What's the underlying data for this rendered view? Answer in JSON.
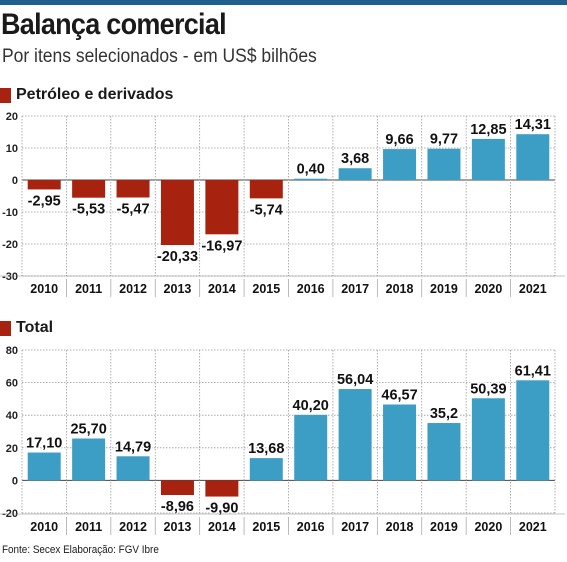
{
  "header": {
    "title": "Balança comercial",
    "subtitle": "Por itens selecionados - em US$ bilhões"
  },
  "colors": {
    "negative_bar": "#a8230f",
    "positive_bar": "#3d9ec5",
    "top_rule": "#1f5f8b"
  },
  "chart_data": [
    {
      "type": "bar",
      "legend": "Petróleo e derivados",
      "categories": [
        "2010",
        "2011",
        "2012",
        "2013",
        "2014",
        "2015",
        "2016",
        "2017",
        "2018",
        "2019",
        "2020",
        "2021"
      ],
      "values": [
        -2.95,
        -5.53,
        -5.47,
        -20.33,
        -16.97,
        -5.74,
        0.4,
        3.68,
        9.66,
        9.77,
        12.85,
        14.31
      ],
      "value_labels": [
        "-2,95",
        "-5,53",
        "-5,47",
        "-20,33",
        "-16,97",
        "-5,74",
        "0,40",
        "3,68",
        "9,66",
        "9,77",
        "12,85",
        "14,31"
      ],
      "yticks": [
        20,
        10,
        0,
        -10,
        -20,
        -30
      ],
      "ytick_labels": [
        "20",
        "10",
        "0",
        "-10",
        "-20",
        "-30"
      ],
      "ylim": [
        -30,
        20
      ]
    },
    {
      "type": "bar",
      "legend": "Total",
      "categories": [
        "2010",
        "2011",
        "2012",
        "2013",
        "2014",
        "2015",
        "2016",
        "2017",
        "2018",
        "2019",
        "2020",
        "2021"
      ],
      "values": [
        17.1,
        25.7,
        14.79,
        -8.96,
        -9.9,
        13.68,
        40.2,
        56.04,
        46.57,
        35.2,
        50.39,
        61.41
      ],
      "value_labels": [
        "17,10",
        "25,70",
        "14,79",
        "-8,96",
        "-9,90",
        "13,68",
        "40,20",
        "56,04",
        "46,57",
        "35,2",
        "50,39",
        "61,41"
      ],
      "yticks": [
        80,
        60,
        40,
        20,
        0,
        -20
      ],
      "ytick_labels": [
        "80",
        "60",
        "40",
        "20",
        "0",
        "-20"
      ],
      "ylim": [
        -20,
        80
      ]
    }
  ],
  "footer": {
    "source": "Fonte: Secex Elaboração: FGV Ibre"
  }
}
